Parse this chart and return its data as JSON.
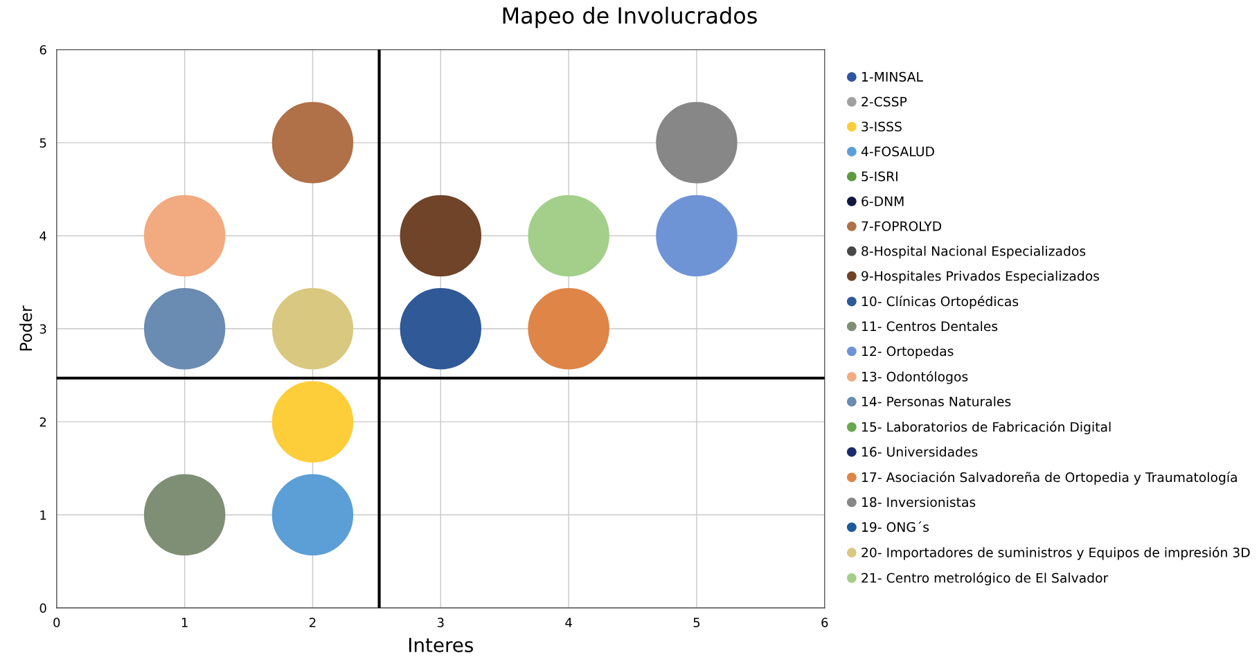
{
  "chart_data": {
    "type": "bubble",
    "title": "Mapeo de Involucrados",
    "xlabel": "Interes",
    "ylabel": "Poder",
    "xlim": [
      0,
      6
    ],
    "ylim": [
      0,
      6
    ],
    "xticks": [
      0,
      1,
      2,
      3,
      4,
      5,
      6
    ],
    "yticks": [
      0,
      1,
      2,
      3,
      4,
      5,
      6
    ],
    "grid": true,
    "legend": "right",
    "ref_lines": [
      {
        "axis": "x",
        "value": 2.52,
        "color": "#000000"
      },
      {
        "axis": "y",
        "value": 2.47,
        "color": "#000000"
      }
    ],
    "series": [
      {
        "name": "1-MINSAL",
        "color": "#2f55a0",
        "x": [
          null
        ],
        "values": [
          null
        ],
        "sizes": [
          null
        ]
      },
      {
        "name": "2-CSSP",
        "color": "#a0a0a0",
        "x": [
          null
        ],
        "values": [
          null
        ],
        "sizes": [
          null
        ]
      },
      {
        "name": "3-ISSS",
        "color": "#fecd3a",
        "x": [
          2
        ],
        "values": [
          2
        ],
        "sizes": [
          1
        ]
      },
      {
        "name": "4-FOSALUD",
        "color": "#5c9fd6",
        "x": [
          2
        ],
        "values": [
          1
        ],
        "sizes": [
          1
        ]
      },
      {
        "name": "5-ISRI",
        "color": "#5e9a40",
        "x": [
          null
        ],
        "values": [
          null
        ],
        "sizes": [
          null
        ]
      },
      {
        "name": "6-DNM",
        "color": "#10183e",
        "x": [
          null
        ],
        "values": [
          null
        ],
        "sizes": [
          null
        ]
      },
      {
        "name": "7-FOPROLYD",
        "color": "#b07048",
        "x": [
          2
        ],
        "values": [
          5
        ],
        "sizes": [
          1
        ]
      },
      {
        "name": "8-Hospital Nacional Especializados",
        "color": "#484848",
        "x": [
          null
        ],
        "values": [
          null
        ],
        "sizes": [
          null
        ]
      },
      {
        "name": "9-Hospitales Privados Especializados",
        "color": "#704428",
        "x": [
          3
        ],
        "values": [
          4
        ],
        "sizes": [
          1
        ]
      },
      {
        "name": "10- Clínicas Ortopédicas",
        "color": "#2f5997",
        "x": [
          3
        ],
        "values": [
          3
        ],
        "sizes": [
          1
        ]
      },
      {
        "name": "11- Centros Dentales",
        "color": "#7f8f75",
        "x": [
          1
        ],
        "values": [
          1
        ],
        "sizes": [
          1
        ]
      },
      {
        "name": "12- Ortopedas",
        "color": "#6f94d6",
        "x": [
          5
        ],
        "values": [
          4
        ],
        "sizes": [
          1
        ]
      },
      {
        "name": "13- Odontólogos",
        "color": "#f2aa80",
        "x": [
          1
        ],
        "values": [
          4
        ],
        "sizes": [
          1
        ]
      },
      {
        "name": "14- Personas Naturales",
        "color": "#6a8bb2",
        "x": [
          1
        ],
        "values": [
          3
        ],
        "sizes": [
          1
        ]
      },
      {
        "name": "15- Laboratorios de Fabricación Digital",
        "color": "#6aa84f",
        "x": [
          null
        ],
        "values": [
          null
        ],
        "sizes": [
          null
        ]
      },
      {
        "name": "16- Universidades",
        "color": "#1a2a6a",
        "x": [
          null
        ],
        "values": [
          null
        ],
        "sizes": [
          null
        ]
      },
      {
        "name": "17- Asociación Salvadoreña de Ortopedia y Traumatología",
        "color": "#de8547",
        "x": [
          4
        ],
        "values": [
          3
        ],
        "sizes": [
          1
        ]
      },
      {
        "name": "18- Inversionistas",
        "color": "#878787",
        "x": [
          5
        ],
        "values": [
          5
        ],
        "sizes": [
          1
        ]
      },
      {
        "name": "19- ONG´s",
        "color": "#1f5a9a",
        "x": [
          null
        ],
        "values": [
          null
        ],
        "sizes": [
          null
        ]
      },
      {
        "name": "20- Importadores de suministros y Equipos de impresión 3D",
        "color": "#d9c880",
        "x": [
          2
        ],
        "values": [
          3
        ],
        "sizes": [
          1
        ]
      },
      {
        "name": "21- Centro metrológico de El Salvador",
        "color": "#a3cf8a",
        "x": [
          4
        ],
        "values": [
          4
        ],
        "sizes": [
          1
        ]
      }
    ]
  }
}
